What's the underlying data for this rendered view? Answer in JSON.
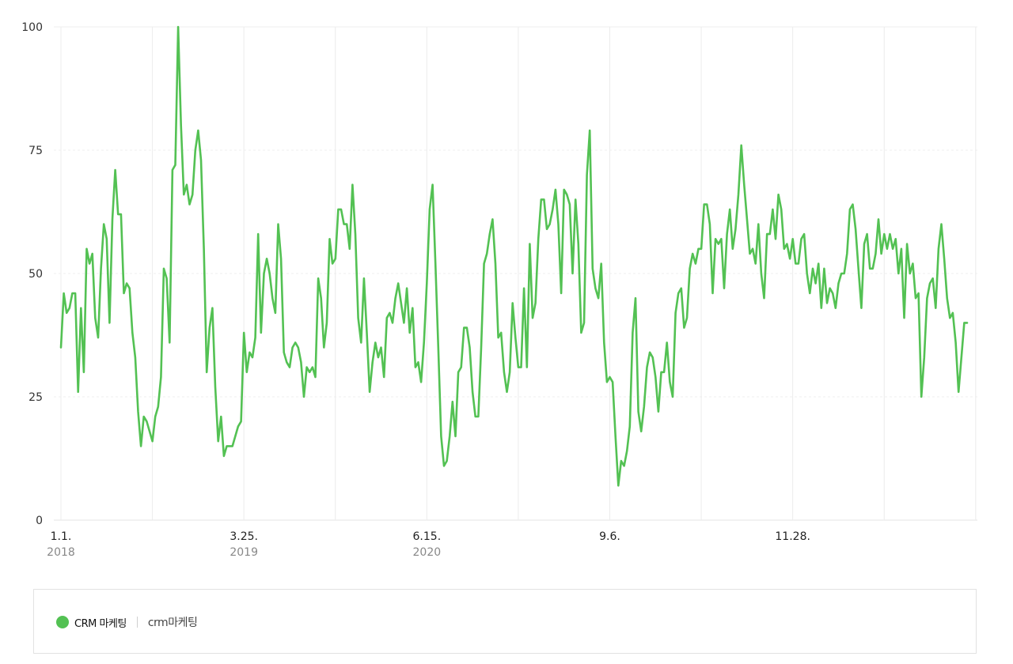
{
  "chart_data": {
    "type": "line",
    "x_labels": [
      {
        "label": "1.1.",
        "year": "2018",
        "week": 0
      },
      {
        "label": "3.25.",
        "year": "2019",
        "week": 64
      },
      {
        "label": "6.15.",
        "year": "2020",
        "week": 128
      },
      {
        "label": "9.6.",
        "year": "",
        "week": 192
      },
      {
        "label": "11.28.",
        "year": "",
        "week": 256
      }
    ],
    "ylim": [
      0,
      100
    ],
    "yticks": [
      0,
      25,
      50,
      75,
      100
    ],
    "ytick_labels": [
      "0",
      "25",
      "50",
      "75",
      "100"
    ],
    "grid": true,
    "legend": "bottom",
    "series": [
      {
        "name": "CRM 마케팅",
        "color": "#53c153",
        "values": [
          35,
          46,
          42,
          43,
          46,
          46,
          26,
          43,
          30,
          55,
          52,
          54,
          41,
          37,
          51,
          60,
          57,
          40,
          61,
          71,
          62,
          62,
          46,
          48,
          47,
          38,
          33,
          22,
          15,
          21,
          20,
          18,
          16,
          21,
          23,
          29,
          51,
          49,
          36,
          71,
          72,
          100,
          80,
          66,
          68,
          64,
          66,
          75,
          79,
          73,
          55,
          30,
          39,
          43,
          27,
          16,
          21,
          13,
          15,
          15,
          15,
          17,
          19,
          20,
          38,
          30,
          34,
          33,
          37,
          58,
          38,
          50,
          53,
          50,
          45,
          42,
          60,
          53,
          34,
          32,
          31,
          35,
          36,
          35,
          32,
          25,
          31,
          30,
          31,
          29,
          49,
          45,
          35,
          40,
          57,
          52,
          53,
          63,
          63,
          60,
          60,
          55,
          68,
          58,
          41,
          36,
          49,
          38,
          26,
          32,
          36,
          33,
          35,
          29,
          41,
          42,
          40,
          45,
          48,
          44,
          40,
          47,
          38,
          43,
          31,
          32,
          28,
          36,
          48,
          63,
          68,
          52,
          35,
          17,
          11,
          12,
          17,
          24,
          17,
          30,
          31,
          39,
          39,
          35,
          26,
          21,
          21,
          35,
          52,
          54,
          58,
          61,
          52,
          37,
          38,
          30,
          26,
          30,
          44,
          37,
          31,
          31,
          47,
          31,
          56,
          41,
          44,
          57,
          65,
          65,
          59,
          60,
          63,
          67,
          60,
          46,
          67,
          66,
          64,
          50,
          65,
          56,
          38,
          40,
          70,
          79,
          51,
          47,
          45,
          52,
          36,
          28,
          29,
          28,
          17,
          7,
          12,
          11,
          14,
          19,
          38,
          45,
          22,
          18,
          23,
          31,
          34,
          33,
          29,
          22,
          30,
          30,
          36,
          28,
          25,
          42,
          46,
          47,
          39,
          41,
          51,
          54,
          52,
          55,
          55,
          64,
          64,
          60,
          46,
          57,
          56,
          57,
          47,
          58,
          63,
          55,
          59,
          66,
          76,
          68,
          61,
          54,
          55,
          52,
          60,
          50,
          45,
          58,
          58,
          63,
          57,
          66,
          63,
          55,
          56,
          53,
          57,
          52,
          52,
          57,
          58,
          50,
          46,
          51,
          48,
          52,
          43,
          51,
          44,
          47,
          46,
          43,
          48,
          50,
          50,
          54,
          63,
          64,
          59,
          51,
          43,
          56,
          58,
          51,
          51,
          54,
          61,
          54,
          58,
          55,
          58,
          55,
          57,
          50,
          55,
          41,
          56,
          50,
          52,
          45,
          46,
          25,
          33,
          45,
          48,
          49,
          43,
          55,
          60,
          53,
          45,
          41,
          42,
          36,
          26,
          33,
          40,
          40
        ]
      }
    ]
  },
  "legend": {
    "series_label": "CRM 마케팅",
    "term_label": "crm마케팅"
  }
}
